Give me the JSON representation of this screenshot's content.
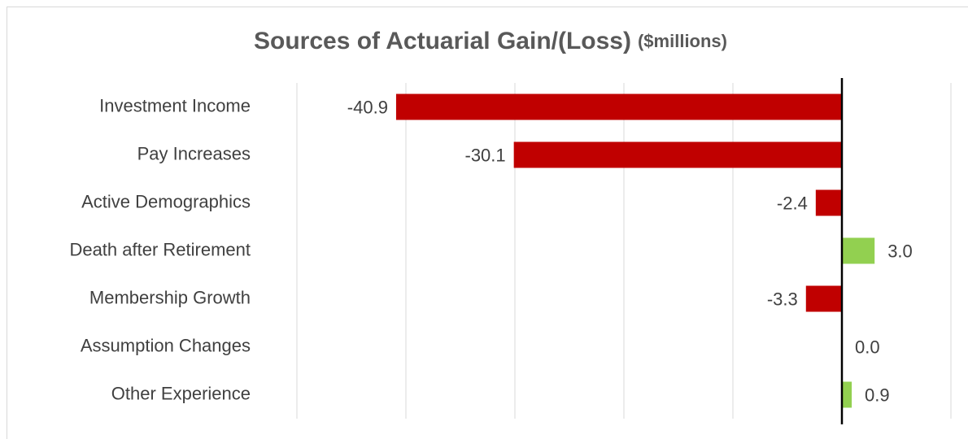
{
  "chart_data": {
    "type": "bar",
    "orientation": "horizontal",
    "title": "Sources of Actuarial Gain/(Loss)",
    "subtitle": "($millions)",
    "categories": [
      "Investment Income",
      "Pay Increases",
      "Active Demographics",
      "Death after Retirement",
      "Membership Growth",
      "Assumption Changes",
      "Other Experience"
    ],
    "values": [
      -40.9,
      -30.1,
      -2.4,
      3.0,
      -3.3,
      0.0,
      0.9
    ],
    "value_labels": [
      "-40.9",
      "-30.1",
      "-2.4",
      "3.0",
      "-3.3",
      "0.0",
      "0.9"
    ],
    "negative_color": "#c00000",
    "positive_color": "#92d050",
    "xlim": [
      -50,
      10
    ],
    "xticks": [
      -50,
      -40,
      -30,
      -20,
      -10,
      0,
      10
    ],
    "grid": true
  }
}
